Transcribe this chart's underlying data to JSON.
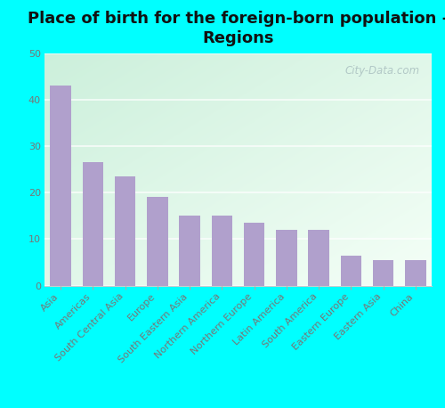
{
  "title": "Place of birth for the foreign-born population -\nRegions",
  "categories": [
    "Asia",
    "Americas",
    "South Central Asia",
    "Europe",
    "South Eastern Asia",
    "Northern America",
    "Northern Europe",
    "Latin America",
    "South America",
    "Eastern Europe",
    "Eastern Asia",
    "China"
  ],
  "values": [
    43,
    26.5,
    23.5,
    19,
    15,
    15,
    13.5,
    12,
    12,
    6.5,
    5.5,
    5.5
  ],
  "bar_color": "#b0a0cc",
  "ylim": [
    0,
    50
  ],
  "yticks": [
    0,
    10,
    20,
    30,
    40,
    50
  ],
  "background_color": "#00ffff",
  "title_fontsize": 13,
  "tick_fontsize": 8,
  "bar_width": 0.65,
  "watermark": "City-Data.com",
  "grid_color": "#ccddcc",
  "ylabel_color": "#777777",
  "xlabel_color": "#777777"
}
